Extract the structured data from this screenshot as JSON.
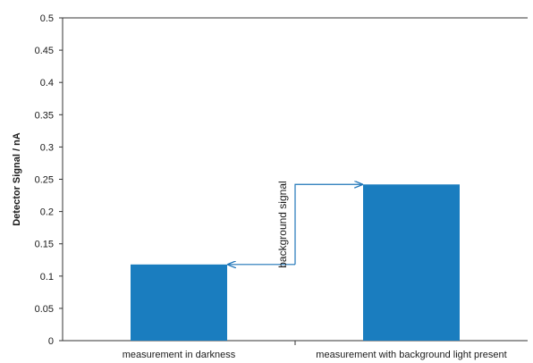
{
  "chart_data": {
    "type": "bar",
    "title": "",
    "xlabel": "",
    "ylabel": "Detector Signal / nA",
    "ylim": [
      0,
      0.5
    ],
    "yticks": [
      "0",
      "0.05",
      "0.1",
      "0.15",
      "0.2",
      "0.25",
      "0.3",
      "0.35",
      "0.4",
      "0.45",
      "0.5"
    ],
    "categories": [
      "measurement in darkness",
      "measurement with background light present"
    ],
    "values": [
      0.118,
      0.242
    ],
    "grid": false,
    "legend": "none",
    "colors": {
      "bar": "#1a7dbf",
      "arrow": "#1f75b8",
      "axis": "#333333"
    },
    "annotations": [
      {
        "text": "background signal",
        "from_category": 0,
        "to_category": 1
      }
    ]
  }
}
